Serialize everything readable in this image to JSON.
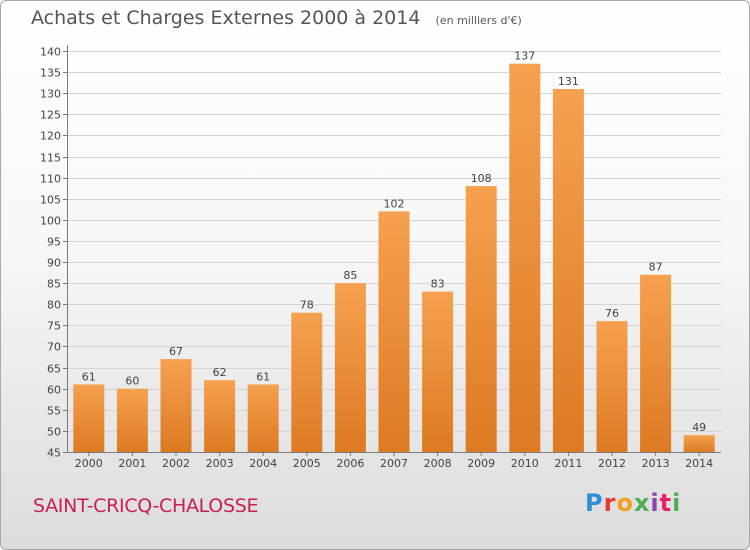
{
  "header": {
    "title": "Achats et Charges Externes 2000 à 2014",
    "subtitle": "(en milliers d'€)"
  },
  "footer": {
    "city": "SAINT-CRICQ-CHALOSSE",
    "logo": "Proxiti"
  },
  "colors": {
    "bar_light": "#f5a14f",
    "bar_dark": "#dd7a22",
    "city_text": "#c8204f"
  },
  "chart_data": {
    "type": "bar",
    "categories": [
      "2000",
      "2001",
      "2002",
      "2003",
      "2004",
      "2005",
      "2006",
      "2007",
      "2008",
      "2009",
      "2010",
      "2011",
      "2012",
      "2013",
      "2014"
    ],
    "values": [
      61,
      60,
      67,
      62,
      61,
      78,
      85,
      102,
      83,
      108,
      137,
      131,
      76,
      87,
      49
    ],
    "ylim": [
      45,
      140
    ],
    "yticks": [
      45,
      50,
      55,
      60,
      65,
      70,
      75,
      80,
      85,
      90,
      95,
      100,
      105,
      110,
      115,
      120,
      125,
      130,
      135,
      140
    ],
    "grid": true,
    "data_labels": true
  }
}
